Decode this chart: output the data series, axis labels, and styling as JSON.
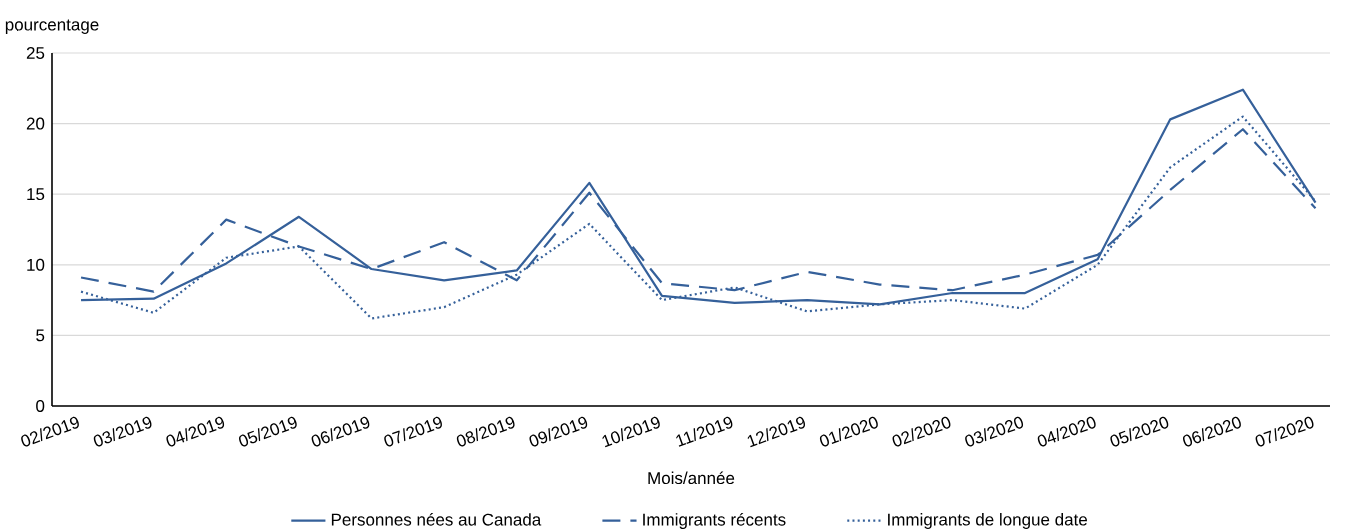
{
  "chart_data": {
    "type": "line",
    "ylabel": "pourcentage",
    "xlabel": "Mois/année",
    "categories": [
      "02/2019",
      "03/2019",
      "04/2019",
      "05/2019",
      "06/2019",
      "07/2019",
      "08/2019",
      "09/2019",
      "10/2019",
      "11/2019",
      "12/2019",
      "01/2020",
      "02/2020",
      "03/2020",
      "04/2020",
      "05/2020",
      "06/2020",
      "07/2020"
    ],
    "series": [
      {
        "name": "Personnes nées au Canada",
        "color": "#35609a",
        "line_style": "solid",
        "values": [
          7.5,
          7.6,
          10.1,
          13.4,
          9.7,
          8.9,
          9.6,
          15.8,
          7.8,
          7.3,
          7.5,
          7.2,
          8.0,
          8.0,
          10.4,
          20.3,
          22.4,
          14.4
        ]
      },
      {
        "name": "Immigrants récents",
        "color": "#35609a",
        "line_style": "dashed",
        "values": [
          9.1,
          8.1,
          13.2,
          11.3,
          9.7,
          11.6,
          8.9,
          15.1,
          8.7,
          8.2,
          9.5,
          8.6,
          8.2,
          9.3,
          10.7,
          15.3,
          19.6,
          14.0
        ]
      },
      {
        "name": "Immigrants de longue date",
        "color": "#35609a",
        "line_style": "dotted",
        "values": [
          8.1,
          6.6,
          10.5,
          11.3,
          6.2,
          7.0,
          9.3,
          12.9,
          7.5,
          8.4,
          6.7,
          7.2,
          7.5,
          6.9,
          10.0,
          16.9,
          20.5,
          14.5
        ]
      }
    ],
    "ylim": [
      0,
      25
    ],
    "yticks": [
      0,
      5,
      10,
      15,
      20,
      25
    ],
    "grid": "y",
    "legend": "bottom",
    "marker": "none"
  }
}
